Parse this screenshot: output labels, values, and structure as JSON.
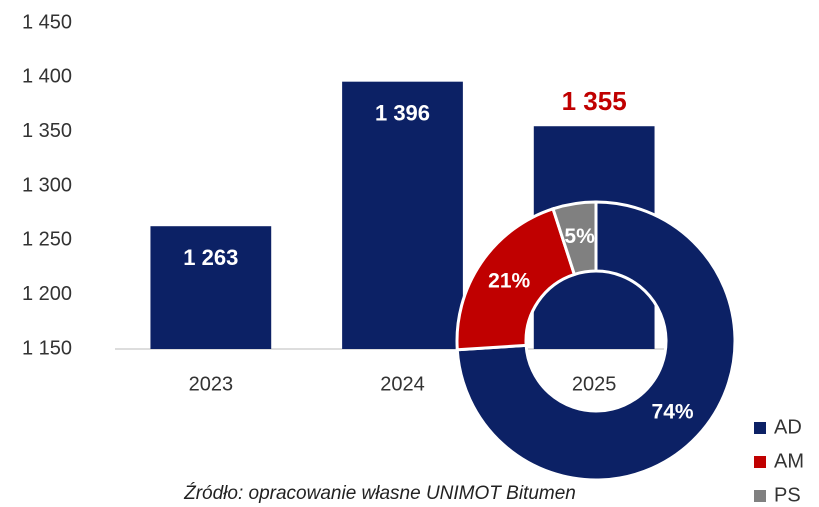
{
  "chart_data": [
    {
      "type": "bar",
      "categories": [
        "2023",
        "2024",
        "2025"
      ],
      "values": [
        1263,
        1396,
        1355
      ],
      "value_labels": [
        "1 263",
        "1 396",
        "1 355"
      ],
      "label_colors": [
        "#ffffff",
        "#ffffff",
        "#c00000"
      ],
      "color": "#0c2165",
      "ylim": [
        1150,
        1450
      ],
      "yticks": [
        {
          "value": 1150,
          "label": "1 150"
        },
        {
          "value": 1200,
          "label": "1 200"
        },
        {
          "value": 1250,
          "label": "1 250"
        },
        {
          "value": 1300,
          "label": "1 300"
        },
        {
          "value": 1350,
          "label": "1 350"
        },
        {
          "value": 1400,
          "label": "1 400"
        },
        {
          "value": 1450,
          "label": "1 450"
        }
      ],
      "grid": false,
      "source": "Źródło: opracowanie własne UNIMOT Bitumen"
    },
    {
      "type": "pie",
      "categories": [
        "AD",
        "AM",
        "PS"
      ],
      "values": [
        74,
        21,
        5
      ],
      "value_labels": [
        "74%",
        "21%",
        "5%"
      ],
      "colors": [
        "#0c2165",
        "#c00000",
        "#808080"
      ],
      "donut": true,
      "legend": "bottom-right"
    }
  ]
}
